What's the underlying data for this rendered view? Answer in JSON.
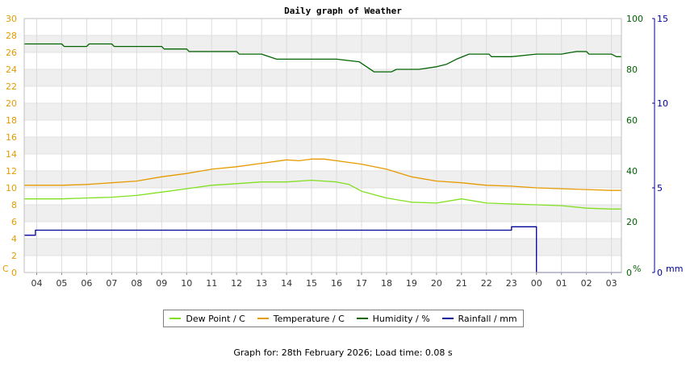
{
  "chart_data": {
    "type": "line",
    "title": "Daily graph of Weather",
    "x_tick_labels": [
      "04",
      "05",
      "06",
      "07",
      "08",
      "09",
      "10",
      "11",
      "12",
      "13",
      "14",
      "15",
      "16",
      "17",
      "18",
      "19",
      "20",
      "21",
      "22",
      "23",
      "00",
      "01",
      "02",
      "03"
    ],
    "x_range_hours": [
      3.5,
      27.4
    ],
    "left_axis": {
      "unit": "C",
      "ylim": [
        0,
        30
      ],
      "ticks": [
        0,
        2,
        4,
        6,
        8,
        10,
        12,
        14,
        16,
        18,
        20,
        22,
        24,
        26,
        28,
        30
      ],
      "color": "#e69a00"
    },
    "humidity_axis": {
      "unit": "%",
      "ylim": [
        0,
        100
      ],
      "ticks": [
        0,
        20,
        40,
        60,
        80,
        100
      ],
      "color": "#006400"
    },
    "rain_axis": {
      "unit": "mm",
      "ylim": [
        0,
        15
      ],
      "ticks": [
        0,
        5,
        10,
        15
      ],
      "color": "#000099"
    },
    "grid": true,
    "legend_position": "bottom",
    "series": [
      {
        "name": "Dew Point / C",
        "axis": "left",
        "color": "#80e020",
        "points": [
          [
            3.5,
            8.7
          ],
          [
            4,
            8.7
          ],
          [
            5,
            8.7
          ],
          [
            6,
            8.8
          ],
          [
            7,
            8.9
          ],
          [
            8,
            9.1
          ],
          [
            9,
            9.5
          ],
          [
            10,
            9.9
          ],
          [
            11,
            10.3
          ],
          [
            12,
            10.5
          ],
          [
            13,
            10.7
          ],
          [
            14,
            10.7
          ],
          [
            15,
            10.9
          ],
          [
            15.5,
            10.8
          ],
          [
            16,
            10.7
          ],
          [
            16.5,
            10.4
          ],
          [
            17,
            9.6
          ],
          [
            18,
            8.8
          ],
          [
            19,
            8.3
          ],
          [
            20,
            8.2
          ],
          [
            21,
            8.7
          ],
          [
            22,
            8.2
          ],
          [
            23,
            8.1
          ],
          [
            24,
            8.0
          ],
          [
            25,
            7.9
          ],
          [
            26,
            7.6
          ],
          [
            27,
            7.5
          ],
          [
            27.4,
            7.5
          ]
        ]
      },
      {
        "name": "Temperature / C",
        "axis": "left",
        "color": "#e69a00",
        "points": [
          [
            3.5,
            10.3
          ],
          [
            4,
            10.3
          ],
          [
            5,
            10.3
          ],
          [
            6,
            10.4
          ],
          [
            7,
            10.6
          ],
          [
            8,
            10.8
          ],
          [
            9,
            11.3
          ],
          [
            10,
            11.7
          ],
          [
            11,
            12.2
          ],
          [
            12,
            12.5
          ],
          [
            13,
            12.9
          ],
          [
            14,
            13.3
          ],
          [
            14.5,
            13.2
          ],
          [
            15,
            13.4
          ],
          [
            15.5,
            13.4
          ],
          [
            16,
            13.2
          ],
          [
            16.5,
            13.0
          ],
          [
            17,
            12.8
          ],
          [
            18,
            12.2
          ],
          [
            19,
            11.3
          ],
          [
            20,
            10.8
          ],
          [
            21,
            10.6
          ],
          [
            22,
            10.3
          ],
          [
            23,
            10.2
          ],
          [
            24,
            10.0
          ],
          [
            25,
            9.9
          ],
          [
            26,
            9.8
          ],
          [
            27,
            9.7
          ],
          [
            27.4,
            9.7
          ]
        ]
      },
      {
        "name": "Humidity / %",
        "axis": "humidity",
        "color": "#006400",
        "points": [
          [
            3.5,
            90
          ],
          [
            5,
            90
          ],
          [
            5.1,
            89
          ],
          [
            6,
            89
          ],
          [
            6.1,
            90
          ],
          [
            7,
            90
          ],
          [
            7.1,
            89
          ],
          [
            9,
            89
          ],
          [
            9.1,
            88
          ],
          [
            10,
            88
          ],
          [
            10.1,
            87
          ],
          [
            12,
            87
          ],
          [
            12.1,
            86
          ],
          [
            13,
            86
          ],
          [
            13.3,
            85
          ],
          [
            13.6,
            84
          ],
          [
            15,
            84
          ],
          [
            16,
            84
          ],
          [
            16.9,
            83
          ],
          [
            17.2,
            81
          ],
          [
            17.5,
            79
          ],
          [
            18.2,
            79
          ],
          [
            18.4,
            80
          ],
          [
            19.3,
            80
          ],
          [
            20,
            81
          ],
          [
            20.4,
            82
          ],
          [
            20.8,
            84
          ],
          [
            21.3,
            86
          ],
          [
            22.1,
            86
          ],
          [
            22.2,
            85
          ],
          [
            23,
            85
          ],
          [
            24,
            86
          ],
          [
            25,
            86
          ],
          [
            25.6,
            87
          ],
          [
            26,
            87
          ],
          [
            26.1,
            86
          ],
          [
            27,
            86
          ],
          [
            27.2,
            85
          ],
          [
            27.4,
            85
          ]
        ]
      },
      {
        "name": "Rainfall / mm",
        "axis": "rain",
        "color": "#000099",
        "points": [
          [
            3.5,
            2.2
          ],
          [
            3.95,
            2.2
          ],
          [
            3.95,
            2.5
          ],
          [
            23,
            2.5
          ],
          [
            23,
            2.7
          ],
          [
            24,
            2.7
          ],
          [
            24,
            0
          ],
          [
            27.4,
            0
          ]
        ]
      }
    ],
    "footer": "Graph for: 28th February 2026; Load time: 0.08 s"
  }
}
